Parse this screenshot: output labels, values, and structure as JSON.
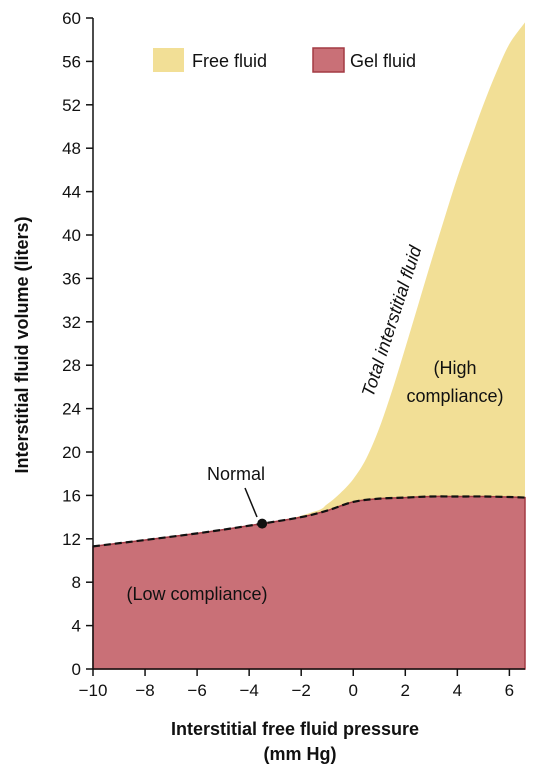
{
  "chart_data": {
    "type": "area",
    "xlabel_line1": "Interstitial free fluid pressure",
    "xlabel_line2": "(mm Hg)",
    "ylabel": "Interstitial fluid volume (liters)",
    "xlim": [
      -10,
      6.6
    ],
    "ylim": [
      0,
      60
    ],
    "x_ticks": [
      -10,
      -8,
      -6,
      -4,
      -2,
      0,
      2,
      4,
      6
    ],
    "x_tick_labels": [
      "−10",
      "−8",
      "−6",
      "−4",
      "−2",
      "0",
      "2",
      "4",
      "6"
    ],
    "y_ticks": [
      0,
      4,
      8,
      12,
      16,
      20,
      24,
      28,
      32,
      36,
      40,
      44,
      48,
      52,
      56,
      60
    ],
    "y_tick_labels": [
      "0",
      "4",
      "8",
      "12",
      "16",
      "20",
      "24",
      "28",
      "32",
      "36",
      "40",
      "44",
      "48",
      "52",
      "56",
      "60"
    ],
    "legend": {
      "placement": "top",
      "entries": [
        {
          "label": "Free fluid",
          "color": "#f2df96"
        },
        {
          "label": "Gel fluid",
          "color": "#c97077"
        }
      ]
    },
    "series": [
      {
        "name": "Gel fluid",
        "color": "#c97077",
        "edge_color": "#a33a44",
        "x": [
          -10,
          -6,
          -3.5,
          -2,
          -1,
          0,
          1,
          2,
          3,
          4,
          5,
          6,
          6.6
        ],
        "y": [
          11.3,
          12.5,
          13.4,
          14.0,
          14.6,
          15.4,
          15.7,
          15.8,
          15.9,
          15.9,
          15.9,
          15.85,
          15.8
        ]
      },
      {
        "name": "Free fluid",
        "color": "#f2df96",
        "x": [
          -10,
          -3.5,
          -1.5,
          -1,
          -0.5,
          0,
          0.5,
          1,
          1.5,
          2,
          2.5,
          3,
          3.5,
          4,
          4.5,
          5,
          5.5,
          6,
          6.6
        ],
        "y": [
          11.3,
          13.4,
          14.5,
          15.2,
          16.2,
          17.5,
          19.4,
          22.2,
          25.7,
          29.6,
          33.6,
          37.6,
          41.5,
          45.3,
          48.7,
          52.0,
          55.0,
          57.6,
          59.6
        ]
      }
    ],
    "normal_point": {
      "x": -3.5,
      "y": 13.4,
      "label": "Normal"
    },
    "annotations": {
      "curve_label": "Total interstitial fluid",
      "high_line1": "(High",
      "high_line2": "compliance)",
      "low": "(Low compliance)"
    }
  }
}
